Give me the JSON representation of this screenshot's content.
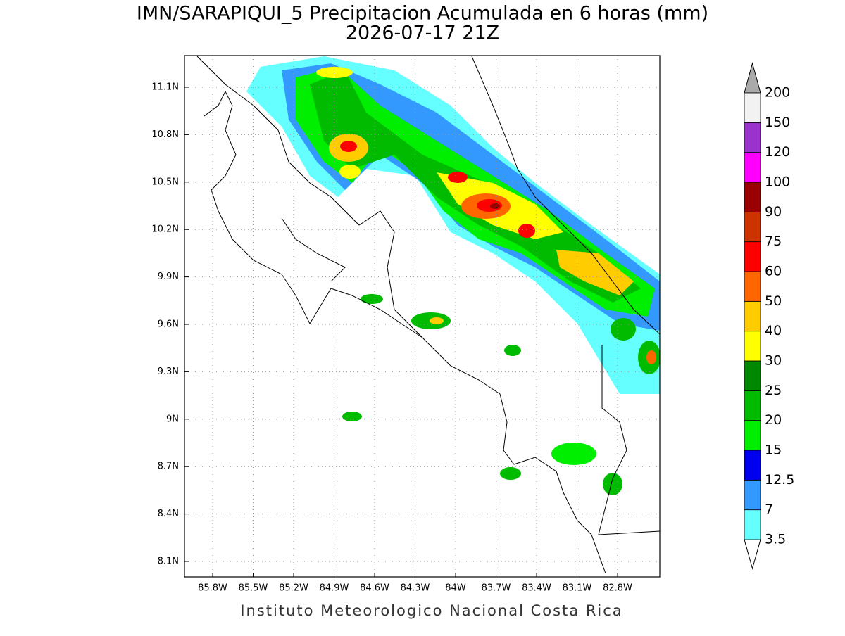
{
  "title": "IMN/SARAPIQUI_5 Precipitacion Acumulada en 6 horas (mm)",
  "subtitle": "2026-07-17 21Z",
  "map": {
    "lon_ticks": [
      "85.8W",
      "85.5W",
      "85.2W",
      "84.9W",
      "84.6W",
      "84.3W",
      "84W",
      "83.7W",
      "83.4W",
      "83.1W",
      "82.8W"
    ],
    "lat_ticks": [
      "11.1N",
      "10.8N",
      "10.5N",
      "10.2N",
      "9.9N",
      "9.6N",
      "9.3N",
      "9N",
      "8.7N",
      "8.4N",
      "8.1N"
    ]
  },
  "colorbar": {
    "levels": [
      3.5,
      7,
      12.5,
      15,
      20,
      25,
      30,
      40,
      50,
      60,
      75,
      90,
      100,
      120,
      150,
      200
    ],
    "colors": [
      "#66ffff",
      "#3399ff",
      "#0000ee",
      "#00ee00",
      "#00bb00",
      "#008800",
      "#ffff00",
      "#ffcc00",
      "#ff6600",
      "#ff0000",
      "#cc3300",
      "#990000",
      "#ff00ff",
      "#9933cc",
      "#f2f2f2"
    ],
    "under_color": "#ffffff",
    "over_color": "#aaaaaa"
  },
  "footer": "Instituto Meteorologico Nacional Costa Rica"
}
